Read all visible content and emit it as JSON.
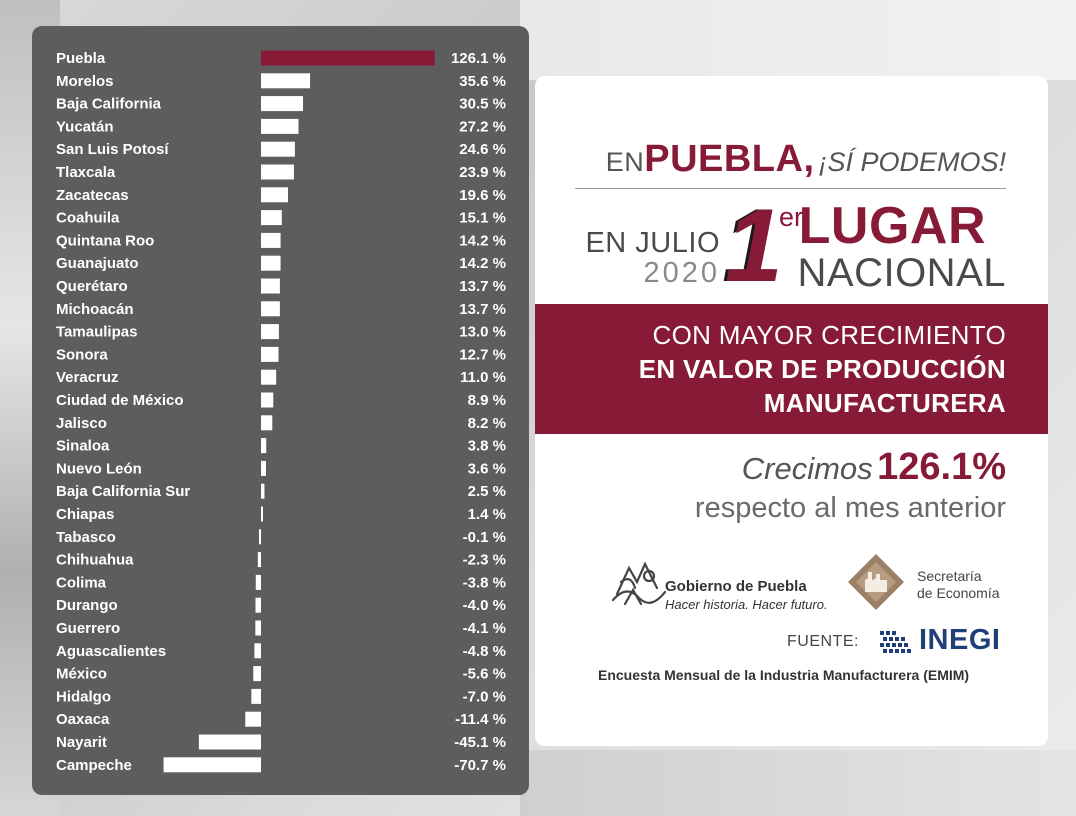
{
  "chart_data": {
    "type": "bar",
    "orientation": "horizontal",
    "categories": [
      "Puebla",
      "Morelos",
      "Baja California",
      "Yucatán",
      "San Luis Potosí",
      "Tlaxcala",
      "Zacatecas",
      "Coahuila",
      "Quintana Roo",
      "Guanajuato",
      "Querétaro",
      "Michoacán",
      "Tamaulipas",
      "Sonora",
      "Veracruz",
      "Ciudad de México",
      "Jalisco",
      "Sinaloa",
      "Nuevo León",
      "Baja California Sur",
      "Chiapas",
      "Tabasco",
      "Chihuahua",
      "Colima",
      "Durango",
      "Guerrero",
      "Aguascalientes",
      "México",
      "Hidalgo",
      "Oaxaca",
      "Nayarit",
      "Campeche"
    ],
    "values": [
      126.1,
      35.6,
      30.5,
      27.2,
      24.6,
      23.9,
      19.6,
      15.1,
      14.2,
      14.2,
      13.7,
      13.7,
      13.0,
      12.7,
      11.0,
      8.9,
      8.2,
      3.8,
      3.6,
      2.5,
      1.4,
      -0.1,
      -2.3,
      -3.8,
      -4.0,
      -4.1,
      -4.8,
      -5.6,
      -7.0,
      -11.4,
      -45.1,
      -70.7
    ],
    "labels": [
      "126.1 %",
      "35.6 %",
      "30.5 %",
      "27.2 %",
      "24.6 %",
      "23.9 %",
      "19.6 %",
      "15.1 %",
      "14.2 %",
      "14.2 %",
      "13.7 %",
      "13.7 %",
      "13.0 %",
      "12.7 %",
      "11.0 %",
      "8.9 %",
      "8.2 %",
      "3.8 %",
      "3.6 %",
      "2.5 %",
      "1.4 %",
      "-0.1 %",
      "-2.3 %",
      "-3.8 %",
      "-4.0 %",
      "-4.1 %",
      "-4.8 %",
      "-5.6 %",
      "-7.0 %",
      "-11.4 %",
      "-45.1 %",
      "-70.7 %"
    ],
    "highlight_index": 0,
    "colors": {
      "highlight": "#861a37",
      "bar": "#ffffff",
      "text": "#ffffff",
      "panel": "#5d5d5d"
    },
    "xlim": [
      -71,
      127
    ],
    "grid": false
  },
  "card": {
    "headline_en": "EN",
    "headline_puebla": "PUEBLA",
    "headline_comma": ",",
    "headline_si": "¡SÍ PODEMOS!",
    "month": "EN JULIO",
    "year": "2020",
    "rank_number": "1",
    "rank_suffix": "er",
    "lugar": "LUGAR",
    "nacional": "NACIONAL",
    "band_line1": "CON MAYOR CRECIMIENTO",
    "band_line2": "EN VALOR DE PRODUCCIÓN",
    "band_line3": "MANUFACTURERA",
    "crecimos": "Crecimos",
    "growth_value": "126.1%",
    "respecto": "respecto al mes anterior",
    "gob_name": "Gobierno de Puebla",
    "gob_tagline": "Hacer historia. Hacer futuro.",
    "sec_line1": "Secretaría",
    "sec_line2": "de Economía",
    "fuente": "FUENTE:",
    "inegi": "INEGI",
    "encuesta": "Encuesta Mensual de la Industria Manufacturera (EMIM)"
  },
  "colors": {
    "brand": "#861a37",
    "inegi": "#1f3f7a"
  },
  "icons": {
    "gobierno_logo": "gobierno-puebla-logo",
    "secretaria_logo": "secretaria-economia-logo",
    "inegi_logo": "inegi-logo"
  }
}
